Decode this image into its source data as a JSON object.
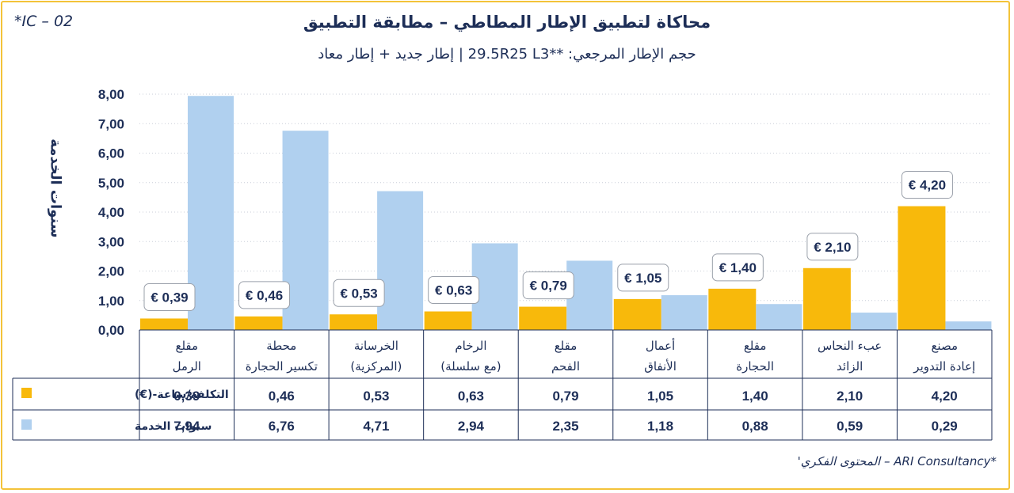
{
  "code": "*IC – 02",
  "title": "محاكاة لتطبيق الإطار المطاطي – مطابقة التطبيق",
  "subtitle": "حجم الإطار المرجعي: **29.5R25 L3 | إطار جديد + إطار معاد",
  "footer": "*ARI Consultancy – المحتوى الفكري'",
  "colors": {
    "cost": "#f8b90b",
    "years": "#b0d0ef",
    "text": "#1d2e57",
    "border": "#f3c33a"
  },
  "chart_data": {
    "type": "bar",
    "ylabel": "سنوات الخدمة",
    "ylim": [
      0,
      8
    ],
    "yticks": [
      "0,00",
      "1,00",
      "2,00",
      "3,00",
      "4,00",
      "5,00",
      "6,00",
      "7,00",
      "8,00"
    ],
    "grid": true,
    "categories": [
      [
        "مقلع",
        "الرمل"
      ],
      [
        "محطة",
        "تكسير الحجارة"
      ],
      [
        "الخرسانة",
        "(المركزية)"
      ],
      [
        "الرخام",
        "(مع سلسلة)"
      ],
      [
        "مقلع",
        "الفحم"
      ],
      [
        "أعمال",
        "الأنفاق"
      ],
      [
        "مقلع",
        "الحجارة"
      ],
      [
        "عبء النحاس",
        "الزائد"
      ],
      [
        "مصنع",
        "إعادة التدوير"
      ]
    ],
    "series": [
      {
        "name": "التكلفة/ساعة-(€)",
        "values": [
          0.39,
          0.46,
          0.53,
          0.63,
          0.79,
          1.05,
          1.4,
          2.1,
          4.2
        ],
        "labels": [
          "0,39",
          "0,46",
          "0,53",
          "0,63",
          "0,79",
          "1,05",
          "1,40",
          "2,10",
          "4,20"
        ],
        "callouts": [
          "€ 0,39",
          "€ 0,46",
          "€ 0,53",
          "€ 0,63",
          "€ 0,79",
          "€ 1,05",
          "€ 1,40",
          "€ 2,10",
          "€ 4,20"
        ]
      },
      {
        "name": "سنوات الخدمة",
        "values": [
          7.94,
          6.76,
          4.71,
          2.94,
          2.35,
          1.18,
          0.88,
          0.59,
          0.29
        ],
        "labels": [
          "7,94",
          "6,76",
          "4,71",
          "2,94",
          "2,35",
          "1,18",
          "0,88",
          "0,59",
          "0,29"
        ]
      }
    ]
  }
}
